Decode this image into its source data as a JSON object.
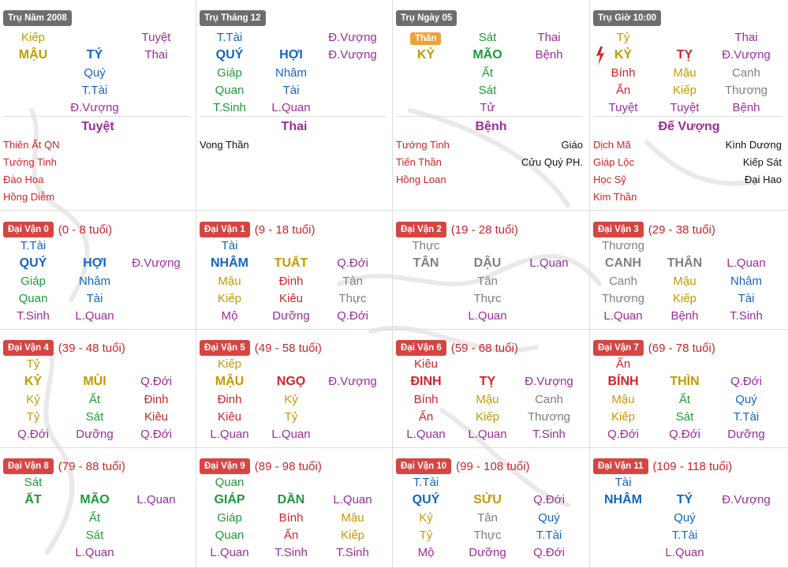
{
  "colors": {
    "Kim": "#808080",
    "Moc": "#1e9a3c",
    "Thuy": "#1565c0",
    "Hoa": "#d2232a",
    "Tho": "#c49a00",
    "Tinh": "#9b2d9b",
    "badge_grey": "#6d6d6d",
    "badge_red": "#d64541",
    "than_badge": "#f0a13c"
  },
  "pillars": [
    {
      "label": "Trụ Năm 2008",
      "r1": [
        "Kiếp",
        "",
        "Tuyệt"
      ],
      "r1c": [
        "Tho",
        "",
        "Tinh"
      ],
      "r2": [
        "MẬU",
        "TÝ",
        "Thai"
      ],
      "r2c": [
        "Tho",
        "Thuy",
        "Tinh"
      ],
      "r3": [
        "",
        "Quý",
        ""
      ],
      "r3c": [
        "",
        "Thuy",
        ""
      ],
      "r4": [
        "",
        "T.Tài",
        ""
      ],
      "r4c": [
        "",
        "Thuy",
        ""
      ],
      "r5": [
        "",
        "Đ.Vượng",
        ""
      ],
      "r5c": [
        "",
        "Tinh",
        ""
      ],
      "cs": "Tuyệt",
      "stars": [
        {
          "l": "Thiên Ất QN",
          "r": ""
        },
        {
          "l": "Tướng Tinh",
          "r": ""
        },
        {
          "l": "Đào Hoa",
          "r": ""
        },
        {
          "l": "Hồng Diễm",
          "r": ""
        }
      ]
    },
    {
      "label": "Trụ Tháng 12",
      "r1": [
        "T.Tài",
        "",
        "Đ.Vượng"
      ],
      "r1c": [
        "Thuy",
        "",
        "Tinh"
      ],
      "r2": [
        "QUÝ",
        "HỢI",
        "Đ.Vượng"
      ],
      "r2c": [
        "Thuy",
        "Thuy",
        "Tinh"
      ],
      "r3": [
        "Giáp",
        "Nhâm",
        ""
      ],
      "r3c": [
        "Moc",
        "Thuy",
        ""
      ],
      "r4": [
        "Quan",
        "Tài",
        ""
      ],
      "r4c": [
        "Moc",
        "Thuy",
        ""
      ],
      "r5": [
        "T.Sinh",
        "L.Quan",
        ""
      ],
      "r5c": [
        "Moc",
        "Tinh",
        ""
      ],
      "cs": "Thai",
      "stars": [
        {
          "l": "",
          "r": "",
          "single": "Vong Thần"
        }
      ]
    },
    {
      "label": "Trụ Ngày 05",
      "than": "Thân",
      "r1": [
        "",
        "Sát",
        "Thai"
      ],
      "r1c": [
        "",
        "Moc",
        "Tinh"
      ],
      "r2": [
        "KỶ",
        "MÃO",
        "Bệnh"
      ],
      "r2c": [
        "Tho",
        "Moc",
        "Tinh"
      ],
      "r3": [
        "",
        "Ất",
        ""
      ],
      "r3c": [
        "",
        "Moc",
        ""
      ],
      "r4": [
        "",
        "Sát",
        ""
      ],
      "r4c": [
        "",
        "Moc",
        ""
      ],
      "r5": [
        "",
        "Tử",
        ""
      ],
      "r5c": [
        "",
        "Tinh",
        ""
      ],
      "cs": "Bệnh",
      "stars": [
        {
          "l": "Tướng Tinh",
          "r": "Giáo"
        },
        {
          "l": "Tiến Thần",
          "r": "Cửu Quý PH."
        },
        {
          "l": "Hồng Loan",
          "r": ""
        }
      ]
    },
    {
      "label": "Trụ Giờ 10:00",
      "r1": [
        "Tỷ",
        "",
        "Thai"
      ],
      "r1c": [
        "Tho",
        "",
        "Tinh"
      ],
      "r2": [
        "KỶ",
        "TỴ",
        "Đ.Vượng"
      ],
      "r2c": [
        "Tho",
        "Hoa",
        "Tinh"
      ],
      "r3": [
        "Bính",
        "Mậu",
        "Canh"
      ],
      "r3c": [
        "Hoa",
        "Tho",
        "Kim"
      ],
      "r4": [
        "Ấn",
        "Kiếp",
        "Thương"
      ],
      "r4c": [
        "Hoa",
        "Tho",
        "Kim"
      ],
      "r5": [
        "Tuyệt",
        "Tuyệt",
        "Bệnh"
      ],
      "r5c": [
        "Tinh",
        "Tinh",
        "Tinh"
      ],
      "cs": "Đế Vượng",
      "stars": [
        {
          "l": "Dịch Mã",
          "r": "Kình Dương"
        },
        {
          "l": "Giáp Lộc",
          "r": "Kiếp Sát"
        },
        {
          "l": "Học Sỹ",
          "r": "Đại Hao"
        },
        {
          "l": "Kim Thần",
          "r": ""
        }
      ]
    }
  ],
  "luck": [
    {
      "label": "Đại Vận 0",
      "age": "(0 - 8 tuổi)",
      "r1": [
        "T.Tài",
        "",
        ""
      ],
      "r1c": [
        "Thuy",
        "",
        ""
      ],
      "r2": [
        "QUÝ",
        "HỢI",
        "Đ.Vượng"
      ],
      "r2c": [
        "Thuy",
        "Thuy",
        "Tinh"
      ],
      "r3": [
        "Giáp",
        "Nhâm",
        ""
      ],
      "r3c": [
        "Moc",
        "Thuy",
        ""
      ],
      "r4": [
        "Quan",
        "Tài",
        ""
      ],
      "r4c": [
        "Moc",
        "Thuy",
        ""
      ],
      "r5": [
        "T.Sinh",
        "L.Quan",
        ""
      ],
      "r5c": [
        "Tinh",
        "Tinh",
        ""
      ]
    },
    {
      "label": "Đại Vận 1",
      "age": "(9 - 18 tuổi)",
      "r1": [
        "Tài",
        "",
        ""
      ],
      "r1c": [
        "Thuy",
        "",
        ""
      ],
      "r2": [
        "NHÂM",
        "TUẤT",
        "Q.Đới"
      ],
      "r2c": [
        "Thuy",
        "Tho",
        "Tinh"
      ],
      "r3": [
        "Mậu",
        "Đinh",
        "Tân"
      ],
      "r3c": [
        "Tho",
        "Hoa",
        "Kim"
      ],
      "r4": [
        "Kiếp",
        "Kiêu",
        "Thực"
      ],
      "r4c": [
        "Tho",
        "Hoa",
        "Kim"
      ],
      "r5": [
        "Mộ",
        "Dưỡng",
        "Q.Đới"
      ],
      "r5c": [
        "Tinh",
        "Tinh",
        "Tinh"
      ]
    },
    {
      "label": "Đại Vận 2",
      "age": "(19 - 28 tuổi)",
      "r1": [
        "Thực",
        "",
        ""
      ],
      "r1c": [
        "Kim",
        "",
        ""
      ],
      "r2": [
        "TÂN",
        "DẬU",
        "L.Quan"
      ],
      "r2c": [
        "Kim",
        "Kim",
        "Tinh"
      ],
      "r3": [
        "",
        "Tân",
        ""
      ],
      "r3c": [
        "",
        "Kim",
        ""
      ],
      "r4": [
        "",
        "Thực",
        ""
      ],
      "r4c": [
        "",
        "Kim",
        ""
      ],
      "r5": [
        "",
        "L.Quan",
        ""
      ],
      "r5c": [
        "",
        "Tinh",
        ""
      ]
    },
    {
      "label": "Đại Vận 3",
      "age": "(29 - 38 tuổi)",
      "r1": [
        "Thương",
        "",
        ""
      ],
      "r1c": [
        "Kim",
        "",
        ""
      ],
      "r2": [
        "CANH",
        "THÂN",
        "L.Quan"
      ],
      "r2c": [
        "Kim",
        "Kim",
        "Tinh"
      ],
      "r3": [
        "Canh",
        "Mậu",
        "Nhâm"
      ],
      "r3c": [
        "Kim",
        "Tho",
        "Thuy"
      ],
      "r4": [
        "Thương",
        "Kiếp",
        "Tài"
      ],
      "r4c": [
        "Kim",
        "Tho",
        "Thuy"
      ],
      "r5": [
        "L.Quan",
        "Bệnh",
        "T.Sinh"
      ],
      "r5c": [
        "Tinh",
        "Tinh",
        "Tinh"
      ]
    },
    {
      "label": "Đại Vận 4",
      "age": "(39 - 48 tuổi)",
      "r1": [
        "Tỷ",
        "",
        ""
      ],
      "r1c": [
        "Tho",
        "",
        ""
      ],
      "r2": [
        "KỶ",
        "MÙI",
        "Q.Đới"
      ],
      "r2c": [
        "Tho",
        "Tho",
        "Tinh"
      ],
      "r3": [
        "Kỷ",
        "Ất",
        "Đinh"
      ],
      "r3c": [
        "Tho",
        "Moc",
        "Hoa"
      ],
      "r4": [
        "Tỷ",
        "Sát",
        "Kiêu"
      ],
      "r4c": [
        "Tho",
        "Moc",
        "Hoa"
      ],
      "r5": [
        "Q.Đới",
        "Dưỡng",
        "Q.Đới"
      ],
      "r5c": [
        "Tinh",
        "Tinh",
        "Tinh"
      ]
    },
    {
      "label": "Đại Vận 5",
      "age": "(49 - 58 tuổi)",
      "r1": [
        "Kiếp",
        "",
        ""
      ],
      "r1c": [
        "Tho",
        "",
        ""
      ],
      "r2": [
        "MẬU",
        "NGỌ",
        "Đ.Vượng"
      ],
      "r2c": [
        "Tho",
        "Hoa",
        "Tinh"
      ],
      "r3": [
        "Đinh",
        "Kỷ",
        ""
      ],
      "r3c": [
        "Hoa",
        "Tho",
        ""
      ],
      "r4": [
        "Kiêu",
        "Tỷ",
        ""
      ],
      "r4c": [
        "Hoa",
        "Tho",
        ""
      ],
      "r5": [
        "L.Quan",
        "L.Quan",
        ""
      ],
      "r5c": [
        "Tinh",
        "Tinh",
        ""
      ]
    },
    {
      "label": "Đại Vận 6",
      "age": "(59 - 68 tuổi)",
      "r1": [
        "Kiêu",
        "",
        ""
      ],
      "r1c": [
        "Hoa",
        "",
        ""
      ],
      "r2": [
        "ĐINH",
        "TỴ",
        "Đ.Vượng"
      ],
      "r2c": [
        "Hoa",
        "Hoa",
        "Tinh"
      ],
      "r3": [
        "Bính",
        "Mậu",
        "Canh"
      ],
      "r3c": [
        "Hoa",
        "Tho",
        "Kim"
      ],
      "r4": [
        "Ấn",
        "Kiếp",
        "Thương"
      ],
      "r4c": [
        "Hoa",
        "Tho",
        "Kim"
      ],
      "r5": [
        "L.Quan",
        "L.Quan",
        "T.Sinh"
      ],
      "r5c": [
        "Tinh",
        "Tinh",
        "Tinh"
      ]
    },
    {
      "label": "Đại Vận 7",
      "age": "(69 - 78 tuổi)",
      "r1": [
        "Ấn",
        "",
        ""
      ],
      "r1c": [
        "Hoa",
        "",
        ""
      ],
      "r2": [
        "BÍNH",
        "THÌN",
        "Q.Đới"
      ],
      "r2c": [
        "Hoa",
        "Tho",
        "Tinh"
      ],
      "r3": [
        "Mậu",
        "Ất",
        "Quý"
      ],
      "r3c": [
        "Tho",
        "Moc",
        "Thuy"
      ],
      "r4": [
        "Kiếp",
        "Sát",
        "T.Tài"
      ],
      "r4c": [
        "Tho",
        "Moc",
        "Thuy"
      ],
      "r5": [
        "Q.Đới",
        "Q.Đới",
        "Dưỡng"
      ],
      "r5c": [
        "Tinh",
        "Tinh",
        "Tinh"
      ]
    },
    {
      "label": "Đại Vận 8",
      "age": "(79 - 88 tuổi)",
      "r1": [
        "Sát",
        "",
        ""
      ],
      "r1c": [
        "Moc",
        "",
        ""
      ],
      "r2": [
        "ẤT",
        "MÃO",
        "L.Quan"
      ],
      "r2c": [
        "Moc",
        "Moc",
        "Tinh"
      ],
      "r3": [
        "",
        "Ất",
        ""
      ],
      "r3c": [
        "",
        "Moc",
        ""
      ],
      "r4": [
        "",
        "Sát",
        ""
      ],
      "r4c": [
        "",
        "Moc",
        ""
      ],
      "r5": [
        "",
        "L.Quan",
        ""
      ],
      "r5c": [
        "",
        "Tinh",
        ""
      ]
    },
    {
      "label": "Đại Vận 9",
      "age": "(89 - 98 tuổi)",
      "r1": [
        "Quan",
        "",
        ""
      ],
      "r1c": [
        "Moc",
        "",
        ""
      ],
      "r2": [
        "GIÁP",
        "DẦN",
        "L.Quan"
      ],
      "r2c": [
        "Moc",
        "Moc",
        "Tinh"
      ],
      "r3": [
        "Giáp",
        "Bính",
        "Mậu"
      ],
      "r3c": [
        "Moc",
        "Hoa",
        "Tho"
      ],
      "r4": [
        "Quan",
        "Ấn",
        "Kiếp"
      ],
      "r4c": [
        "Moc",
        "Hoa",
        "Tho"
      ],
      "r5": [
        "L.Quan",
        "T.Sinh",
        "T.Sinh"
      ],
      "r5c": [
        "Tinh",
        "Tinh",
        "Tinh"
      ]
    },
    {
      "label": "Đại Vận 10",
      "age": "(99 - 108 tuổi)",
      "r1": [
        "T.Tài",
        "",
        ""
      ],
      "r1c": [
        "Thuy",
        "",
        ""
      ],
      "r2": [
        "QUÝ",
        "SỬU",
        "Q.Đới"
      ],
      "r2c": [
        "Thuy",
        "Tho",
        "Tinh"
      ],
      "r3": [
        "Kỷ",
        "Tân",
        "Quý"
      ],
      "r3c": [
        "Tho",
        "Kim",
        "Thuy"
      ],
      "r4": [
        "Tỷ",
        "Thực",
        "T.Tài"
      ],
      "r4c": [
        "Tho",
        "Kim",
        "Thuy"
      ],
      "r5": [
        "Mộ",
        "Dưỡng",
        "Q.Đới"
      ],
      "r5c": [
        "Tinh",
        "Tinh",
        "Tinh"
      ]
    },
    {
      "label": "Đại Vận 11",
      "age": "(109 - 118 tuổi)",
      "r1": [
        "Tài",
        "",
        ""
      ],
      "r1c": [
        "Thuy",
        "",
        ""
      ],
      "r2": [
        "NHÂM",
        "TÝ",
        "Đ.Vượng"
      ],
      "r2c": [
        "Thuy",
        "Thuy",
        "Tinh"
      ],
      "r3": [
        "",
        "Quý",
        ""
      ],
      "r3c": [
        "",
        "Thuy",
        ""
      ],
      "r4": [
        "",
        "T.Tài",
        ""
      ],
      "r4c": [
        "",
        "Thuy",
        ""
      ],
      "r5": [
        "",
        "L.Quan",
        ""
      ],
      "r5c": [
        "",
        "Tinh",
        ""
      ]
    }
  ]
}
